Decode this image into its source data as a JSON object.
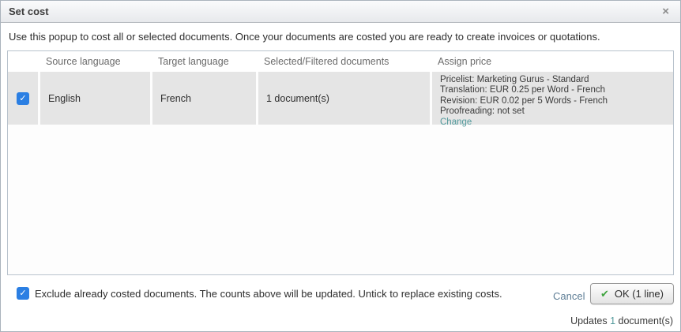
{
  "dialog": {
    "title": "Set cost",
    "close_icon": "×",
    "description": "Use this popup to cost all or selected documents. Once your documents are costed you are ready to create invoices or quotations."
  },
  "table": {
    "columns": [
      "Source language",
      "Target language",
      "Selected/Filtered documents",
      "Assign price"
    ],
    "rows": [
      {
        "checked": true,
        "check_glyph": "✓",
        "source_language": "English",
        "target_language": "French",
        "documents": "1 document(s)",
        "price_lines": [
          "Pricelist: Marketing Gurus - Standard",
          "Translation: EUR 0.25 per Word - French",
          "Revision: EUR 0.02 per 5 Words - French",
          "Proofreading: not set"
        ],
        "change_link": "Change"
      }
    ]
  },
  "footer": {
    "exclude_checked": true,
    "exclude_check_glyph": "✓",
    "exclude_label": "Exclude already costed documents. The counts above will be updated. Untick to replace existing costs.",
    "cancel_label": "Cancel",
    "ok_label": "OK (1 line)",
    "ok_check_glyph": "✔",
    "updates_prefix": "Updates ",
    "updates_count": "1",
    "updates_suffix": " document(s)"
  },
  "colors": {
    "accent_teal": "#539a9c",
    "checkbox_blue": "#2b7fe3",
    "ok_check_green": "#3fa43f"
  }
}
